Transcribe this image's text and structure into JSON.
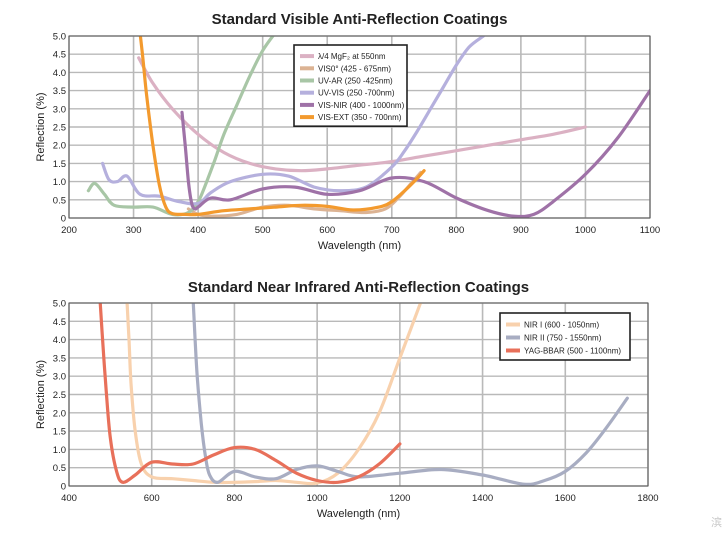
{
  "watermark": "滨",
  "chart_data": [
    {
      "type": "line",
      "title": "Standard Visible Anti-Reflection Coatings",
      "xlabel": "Wavelength (nm)",
      "ylabel": "Reflection (%)",
      "xlim": [
        200,
        1100
      ],
      "ylim": [
        0,
        5
      ],
      "xticks": [
        200,
        300,
        400,
        500,
        600,
        700,
        800,
        900,
        1000,
        1100
      ],
      "yticks": [
        "0",
        "0.5",
        "1.0",
        "1.5",
        "2.0",
        "2.5",
        "3.0",
        "3.5",
        "4.0",
        "4.5",
        "5.0"
      ],
      "grid": true,
      "legend_position": "top-center",
      "series": [
        {
          "name": "λ/4 MgF₂ at 550nm",
          "color": "#dbb1c3",
          "x": [
            308,
            330,
            360,
            400,
            440,
            480,
            520,
            560,
            600,
            650,
            700,
            750,
            800,
            850,
            900,
            950,
            1000
          ],
          "y": [
            4.4,
            3.7,
            3.0,
            2.3,
            1.8,
            1.5,
            1.35,
            1.3,
            1.35,
            1.45,
            1.55,
            1.7,
            1.85,
            2.0,
            2.15,
            2.3,
            2.5
          ]
        },
        {
          "name": "VIS0° (425 - 675nm)",
          "color": "#dcb393",
          "x": [
            385,
            400,
            420,
            460,
            500,
            540,
            580,
            620,
            660,
            690,
            710,
            730,
            745
          ],
          "y": [
            0.25,
            0.1,
            0.05,
            0.1,
            0.3,
            0.35,
            0.25,
            0.2,
            0.15,
            0.25,
            0.55,
            0.95,
            1.25
          ]
        },
        {
          "name": "UV-AR (250 -425nm)",
          "color": "#a8c6a6",
          "x": [
            230,
            240,
            255,
            270,
            300,
            330,
            360,
            385,
            400,
            410,
            425,
            440,
            460,
            480,
            500,
            520
          ],
          "y": [
            0.75,
            0.95,
            0.65,
            0.35,
            0.3,
            0.3,
            0.1,
            0.15,
            0.45,
            0.85,
            1.55,
            2.3,
            3.1,
            3.9,
            4.6,
            5.1
          ]
        },
        {
          "name": "UV-VIS (250 -700nm)",
          "color": "#b5b0dd",
          "x": [
            252,
            262,
            275,
            290,
            310,
            340,
            370,
            400,
            420,
            450,
            500,
            540,
            580,
            620,
            660,
            700,
            720,
            740,
            760,
            780,
            800,
            820,
            842
          ],
          "y": [
            1.5,
            1.05,
            1.0,
            1.15,
            0.65,
            0.6,
            0.45,
            0.4,
            0.7,
            1.0,
            1.2,
            1.15,
            0.85,
            0.75,
            0.85,
            1.4,
            1.85,
            2.4,
            3.0,
            3.6,
            4.2,
            4.7,
            5.0
          ]
        },
        {
          "name": "VIS-NIR (400 - 1000nm)",
          "color": "#9f72a7",
          "x": [
            375,
            380,
            385,
            390,
            395,
            400,
            420,
            450,
            500,
            550,
            600,
            650,
            700,
            750,
            800,
            850,
            890,
            920,
            950,
            1000,
            1050,
            1100
          ],
          "y": [
            2.9,
            2.0,
            1.0,
            0.4,
            0.25,
            0.3,
            0.55,
            0.5,
            0.8,
            0.85,
            0.65,
            0.75,
            1.1,
            1.0,
            0.55,
            0.2,
            0.05,
            0.1,
            0.45,
            1.2,
            2.2,
            3.5
          ]
        },
        {
          "name": "VIS-EXT (350 - 700nm)",
          "color": "#f39a2e",
          "x": [
            310,
            315,
            320,
            330,
            340,
            350,
            360,
            380,
            400,
            440,
            480,
            520,
            560,
            600,
            640,
            680,
            700,
            720,
            740,
            750
          ],
          "y": [
            5.1,
            4.3,
            3.4,
            2.0,
            0.9,
            0.3,
            0.12,
            0.1,
            0.1,
            0.2,
            0.25,
            0.3,
            0.35,
            0.32,
            0.22,
            0.3,
            0.45,
            0.75,
            1.1,
            1.3
          ]
        }
      ]
    },
    {
      "type": "line",
      "title": "Standard Near Infrared Anti-Reflection Coatings",
      "xlabel": "Wavelength (nm)",
      "ylabel": "Reflection (%)",
      "xlim": [
        400,
        1800
      ],
      "ylim": [
        0,
        5
      ],
      "xticks": [
        400,
        600,
        800,
        1000,
        1200,
        1400,
        1600,
        1800
      ],
      "yticks": [
        "0",
        "0.5",
        "1.0",
        "1.5",
        "2.0",
        "2.5",
        "3.0",
        "3.5",
        "4.0",
        "4.5",
        "5.0"
      ],
      "grid": true,
      "legend_position": "top-right",
      "series": [
        {
          "name": "NIR I (600 - 1050nm)",
          "color": "#f8d1ad",
          "x": [
            540,
            545,
            550,
            560,
            575,
            600,
            650,
            700,
            750,
            800,
            850,
            900,
            950,
            1000,
            1050,
            1100,
            1150,
            1200,
            1250
          ],
          "y": [
            5.1,
            4.0,
            2.8,
            1.5,
            0.6,
            0.25,
            0.2,
            0.15,
            0.1,
            0.1,
            0.12,
            0.15,
            0.1,
            0.08,
            0.35,
            1.0,
            2.0,
            3.5,
            5.0
          ]
        },
        {
          "name": "NIR II (750 - 1550nm)",
          "color": "#a8adc2",
          "x": [
            700,
            705,
            710,
            720,
            730,
            740,
            760,
            800,
            850,
            900,
            950,
            1000,
            1050,
            1100,
            1200,
            1300,
            1400,
            1500,
            1550,
            1600,
            1650,
            1700,
            1750
          ],
          "y": [
            5.1,
            4.0,
            3.0,
            1.7,
            0.8,
            0.3,
            0.1,
            0.4,
            0.25,
            0.2,
            0.45,
            0.55,
            0.4,
            0.25,
            0.35,
            0.45,
            0.3,
            0.05,
            0.15,
            0.4,
            0.9,
            1.6,
            2.4
          ]
        },
        {
          "name": "YAG-BBAR (500 - 1100nm)",
          "color": "#e8705a",
          "x": [
            475,
            480,
            490,
            500,
            515,
            530,
            560,
            600,
            650,
            700,
            750,
            800,
            850,
            900,
            950,
            1000,
            1050,
            1100,
            1150,
            1200
          ],
          "y": [
            5.1,
            4.2,
            2.6,
            1.3,
            0.4,
            0.1,
            0.3,
            0.65,
            0.6,
            0.6,
            0.85,
            1.05,
            1.0,
            0.7,
            0.35,
            0.15,
            0.1,
            0.25,
            0.6,
            1.15
          ]
        }
      ]
    }
  ]
}
